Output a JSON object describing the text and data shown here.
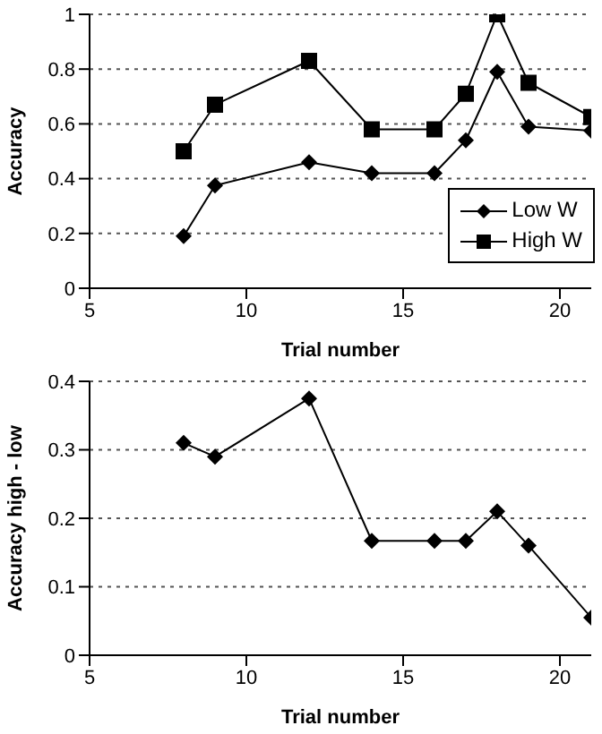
{
  "chart_data": [
    {
      "type": "line",
      "xlabel": "Trial number",
      "ylabel": "Accuracy",
      "x": [
        8,
        9,
        12,
        14,
        16,
        17,
        18,
        19,
        21
      ],
      "series": [
        {
          "name": "Low W",
          "color": "#000000",
          "marker": "diamond",
          "values": [
            0.19,
            0.375,
            0.46,
            0.42,
            0.42,
            0.54,
            0.79,
            0.59,
            0.575
          ]
        },
        {
          "name": "High W",
          "color": "#000000",
          "marker": "square",
          "values": [
            0.5,
            0.67,
            0.83,
            0.58,
            0.58,
            0.71,
            1.0,
            0.75,
            0.625
          ]
        }
      ],
      "xlim": [
        5,
        21
      ],
      "xticks": [
        5,
        10,
        15,
        20
      ],
      "ylim": [
        0,
        1
      ],
      "yticks": [
        0,
        0.2,
        0.4,
        0.6,
        0.8,
        1
      ],
      "grid": "y",
      "legend": "bottom right",
      "line_style": "solid"
    },
    {
      "type": "line",
      "xlabel": "Trial number",
      "ylabel": "Accuracy high - low",
      "x": [
        8,
        9,
        12,
        14,
        16,
        17,
        18,
        19,
        21
      ],
      "series": [
        {
          "color": "#000000",
          "marker": "diamond",
          "values": [
            0.31,
            0.29,
            0.375,
            0.167,
            0.167,
            0.167,
            0.21,
            0.16,
            0.055
          ]
        }
      ],
      "xlim": [
        5,
        21
      ],
      "xticks": [
        5,
        10,
        15,
        20
      ],
      "ylim": [
        0,
        0.4
      ],
      "yticks": [
        0,
        0.1,
        0.2,
        0.3,
        0.4
      ],
      "grid": "y",
      "legend": false,
      "line_style": "solid"
    }
  ]
}
